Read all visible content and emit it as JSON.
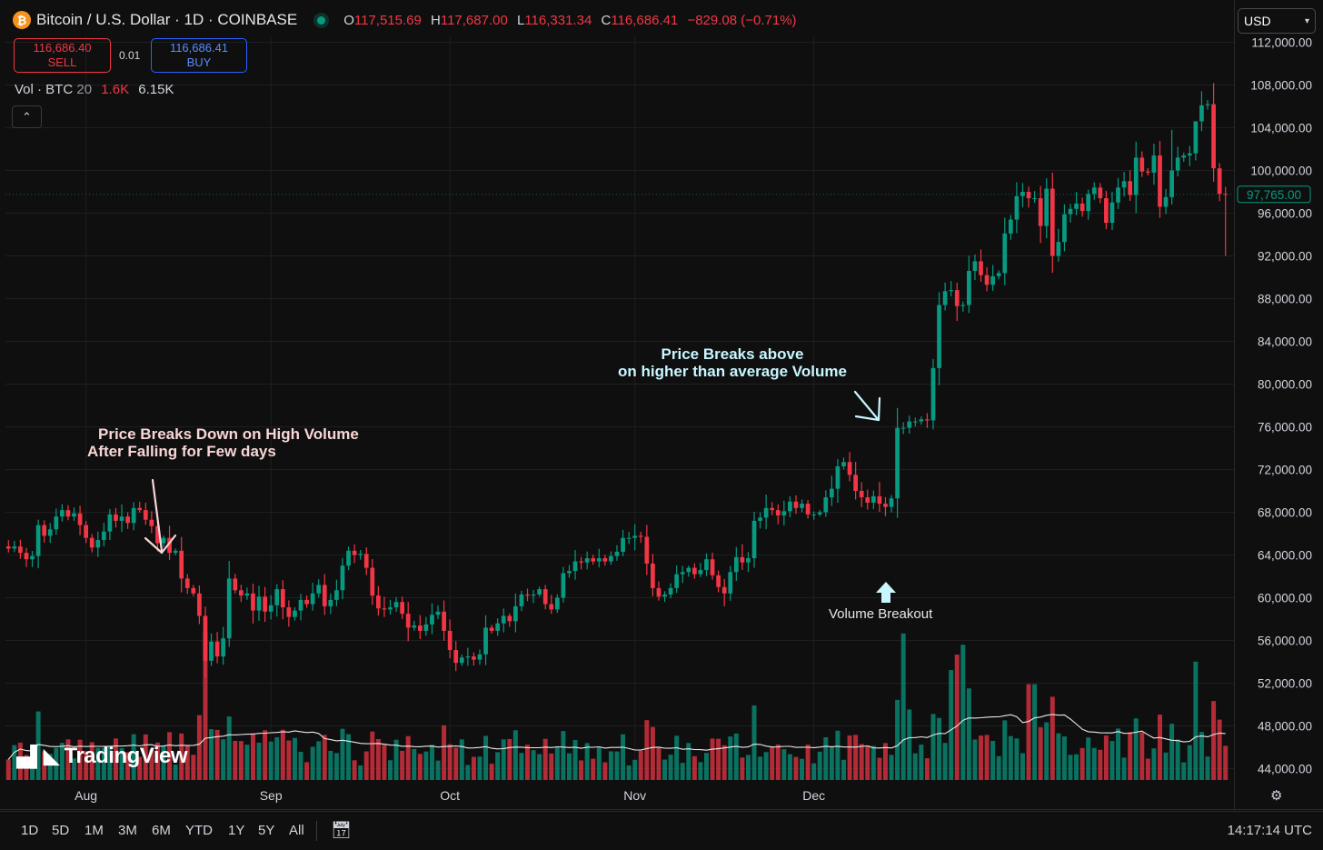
{
  "header": {
    "symbol": "Bitcoin / U.S. Dollar · 1D · COINBASE",
    "logo_glyph": "₿",
    "ohlc": {
      "o_label": "O",
      "o": "117,515.69",
      "h_label": "H",
      "h": "117,687.00",
      "l_label": "L",
      "l": "116,331.34",
      "c_label": "C",
      "c": "116,686.41",
      "change": "−829.08 (−0.71%)"
    }
  },
  "trade": {
    "sell_price": "116,686.40",
    "sell_label": "SELL",
    "spread": "0.01",
    "buy_price": "116,686.41",
    "buy_label": "BUY"
  },
  "volume_legend": {
    "label": "Vol · BTC",
    "length": "20",
    "value": "1.6K",
    "ma": "6.15K"
  },
  "currency": {
    "value": "USD"
  },
  "last_price": "97,765.00",
  "watermark": "TradingView",
  "annotations": {
    "breakdown_line1": "Price Breaks Down on High Volume",
    "breakdown_line2": "After Falling for Few days",
    "breakout_line1": "Price Breaks above",
    "breakout_line2": "on higher than average Volume",
    "volume_breakout": "Volume Breakout"
  },
  "toolbar": {
    "ranges": [
      "1D",
      "5D",
      "1M",
      "3M",
      "6M",
      "YTD",
      "1Y",
      "5Y",
      "All"
    ],
    "clock": "14:17:14 UTC"
  },
  "colors": {
    "up": "#089981",
    "down": "#f23645",
    "background": "#0f0f0f",
    "grid": "#1f1f1f"
  },
  "chart_data": {
    "type": "candlestick",
    "title": "",
    "x_tick_labels": [
      "Aug",
      "Sep",
      "Oct",
      "Nov",
      "Dec"
    ],
    "y_tick_labels": [
      "44,000.00",
      "48,000.00",
      "52,000.00",
      "56,000.00",
      "60,000.00",
      "64,000.00",
      "68,000.00",
      "72,000.00",
      "76,000.00",
      "80,000.00",
      "84,000.00",
      "88,000.00",
      "92,000.00",
      "96,000.00",
      "100,000.00",
      "104,000.00",
      "108,000.00",
      "112,000.00"
    ],
    "ylim": [
      43000,
      112500
    ],
    "grid": true,
    "close": [
      64600,
      64800,
      64200,
      63600,
      63900,
      66800,
      65800,
      66400,
      67600,
      68200,
      67600,
      67900,
      66800,
      65600,
      64700,
      65400,
      66200,
      67800,
      67200,
      67600,
      67000,
      68400,
      68200,
      67300,
      66700,
      65100,
      65600,
      64200,
      64400,
      61800,
      60900,
      60400,
      58300,
      54100,
      55900,
      54500,
      56200,
      61800,
      60700,
      60200,
      60400,
      58800,
      60100,
      58700,
      59300,
      60800,
      59100,
      58200,
      58800,
      59800,
      59400,
      60400,
      61200,
      59200,
      59800,
      60700,
      63000,
      64400,
      64000,
      64100,
      62800,
      60200,
      59000,
      58900,
      59100,
      59600,
      58500,
      57200,
      57400,
      56900,
      57500,
      58400,
      58700,
      56900,
      55100,
      53900,
      54400,
      54500,
      54200,
      54700,
      57200,
      56900,
      57600,
      58300,
      57800,
      59200,
      60300,
      60200,
      60300,
      60800,
      59400,
      58900,
      60000,
      62300,
      62500,
      63400,
      63300,
      63700,
      63400,
      63700,
      63400,
      63900,
      64300,
      65600,
      65600,
      65800,
      65700,
      63200,
      60900,
      60100,
      60300,
      60900,
      62200,
      62400,
      62800,
      62200,
      62600,
      63600,
      62100,
      61000,
      60400,
      62400,
      63800,
      63300,
      63700,
      67200,
      67500,
      68400,
      68200,
      67700,
      68100,
      69000,
      68400,
      68800,
      67800,
      67800,
      68000,
      69400,
      70200,
      72300,
      72700,
      71500,
      70000,
      69400,
      68900,
      69500,
      68800,
      68500,
      69300,
      75900,
      75900,
      76500,
      76500,
      76700,
      76600,
      81500,
      87400,
      88700,
      88800,
      87300,
      87400,
      90600,
      91500,
      90200,
      89300,
      90100,
      90400,
      94100,
      95400,
      97600,
      98000,
      97400,
      97400,
      94800,
      98300,
      92000,
      93300,
      95900,
      96400,
      96900,
      96200,
      97800,
      98400,
      97400,
      95100,
      97000,
      98400,
      99000,
      97700,
      101200,
      99900,
      99800,
      101400,
      96600,
      97500,
      100000,
      101200,
      101400,
      101600,
      104600,
      106100,
      106200,
      100200,
      97800,
      97765
    ],
    "volume_breakout_index": 150,
    "breakdown_index": 33
  }
}
